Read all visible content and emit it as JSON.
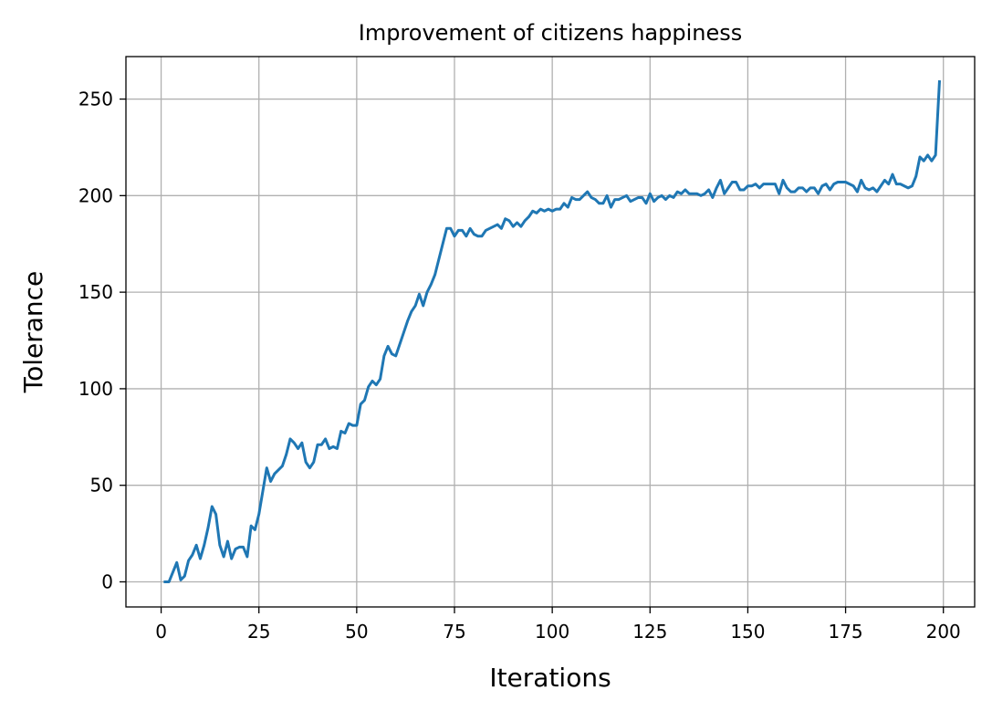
{
  "chart_data": {
    "type": "line",
    "title": "Improvement of citizens happiness",
    "xlabel": "Iterations",
    "ylabel": "Tolerance",
    "xlim": [
      -9,
      208
    ],
    "ylim": [
      -13,
      272
    ],
    "xticks": [
      0,
      25,
      50,
      75,
      100,
      125,
      150,
      175,
      200
    ],
    "yticks": [
      0,
      50,
      100,
      150,
      200,
      250
    ],
    "grid": true,
    "colors": {
      "line": "#1f77b4",
      "grid": "#b0b0b0",
      "axes": "#000000"
    },
    "series": [
      {
        "x": [
          1,
          2,
          3,
          4,
          5,
          6,
          7,
          8,
          9,
          10,
          11,
          12,
          13,
          14,
          15,
          16,
          17,
          18,
          19,
          20,
          21,
          22,
          23,
          24,
          25,
          26,
          27,
          28,
          29,
          30,
          31,
          32,
          33,
          34,
          35,
          36,
          37,
          38,
          39,
          40,
          41,
          42,
          43,
          44,
          45,
          46,
          47,
          48,
          49,
          50,
          51,
          52,
          53,
          54,
          55,
          56,
          57,
          58,
          59,
          60,
          61,
          62,
          63,
          64,
          65,
          66,
          67,
          68,
          69,
          70,
          71,
          72,
          73,
          74,
          75,
          76,
          77,
          78,
          79,
          80,
          81,
          82,
          83,
          84,
          85,
          86,
          87,
          88,
          89,
          90,
          91,
          92,
          93,
          94,
          95,
          96,
          97,
          98,
          99,
          100,
          101,
          102,
          103,
          104,
          105,
          106,
          107,
          108,
          109,
          110,
          111,
          112,
          113,
          114,
          115,
          116,
          117,
          118,
          119,
          120,
          121,
          122,
          123,
          124,
          125,
          126,
          127,
          128,
          129,
          130,
          131,
          132,
          133,
          134,
          135,
          136,
          137,
          138,
          139,
          140,
          141,
          142,
          143,
          144,
          145,
          146,
          147,
          148,
          149,
          150,
          151,
          152,
          153,
          154,
          155,
          156,
          157,
          158,
          159,
          160,
          161,
          162,
          163,
          164,
          165,
          166,
          167,
          168,
          169,
          170,
          171,
          172,
          173,
          174,
          175,
          176,
          177,
          178,
          179,
          180,
          181,
          182,
          183,
          184,
          185,
          186,
          187,
          188,
          189,
          190,
          191,
          192,
          193,
          194,
          195,
          196,
          197,
          198,
          199
        ],
        "y": [
          0,
          0,
          5,
          10,
          1,
          3,
          11,
          14,
          19,
          12,
          19,
          28,
          39,
          35,
          19,
          13,
          21,
          12,
          17,
          18,
          18,
          13,
          29,
          27,
          35,
          47,
          59,
          52,
          56,
          58,
          60,
          66,
          74,
          72,
          69,
          72,
          62,
          59,
          62,
          71,
          71,
          74,
          69,
          70,
          69,
          78,
          77,
          82,
          81,
          81,
          92,
          94,
          101,
          104,
          102,
          105,
          117,
          122,
          118,
          117,
          123,
          129,
          135,
          140,
          143,
          149,
          143,
          150,
          154,
          159,
          167,
          175,
          183,
          183,
          179,
          182,
          182,
          179,
          183,
          180,
          179,
          179,
          182,
          183,
          184,
          185,
          183,
          188,
          187,
          184,
          186,
          184,
          187,
          189,
          192,
          191,
          193,
          192,
          193,
          192,
          193,
          193,
          196,
          194,
          199,
          198,
          198,
          200,
          202,
          199,
          198,
          196,
          196,
          200,
          194,
          198,
          198,
          199,
          200,
          197,
          198,
          199,
          199,
          196,
          201,
          197,
          199,
          200,
          198,
          200,
          199,
          202,
          201,
          203,
          201,
          201,
          201,
          200,
          201,
          203,
          199,
          204,
          208,
          201,
          204,
          207,
          207,
          203,
          203,
          205,
          205,
          206,
          204,
          206,
          206,
          206,
          206,
          201,
          208,
          204,
          202,
          202,
          204,
          204,
          202,
          204,
          204,
          201,
          205,
          206,
          203,
          206,
          207,
          207,
          207,
          206,
          205,
          202,
          208,
          204,
          203,
          204,
          202,
          205,
          208,
          206,
          211,
          206,
          206,
          205,
          204,
          205,
          210,
          220,
          218,
          221,
          218,
          221,
          259
        ]
      }
    ]
  }
}
